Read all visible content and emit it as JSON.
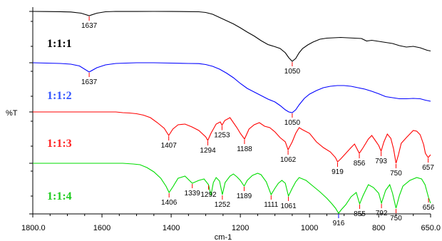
{
  "chart_data": {
    "type": "line",
    "xlabel": "cm-1",
    "ylabel": "%T",
    "xlim": [
      1800.0,
      650.0
    ],
    "x_reversed": true,
    "x_ticks": [
      {
        "value": 1800,
        "label": "1800.0"
      },
      {
        "value": 1600,
        "label": "1600"
      },
      {
        "value": 1400,
        "label": "1400"
      },
      {
        "value": 1200,
        "label": "1200"
      },
      {
        "value": 1000,
        "label": "1000"
      },
      {
        "value": 800,
        "label": "800"
      },
      {
        "value": 650,
        "label": "650.0"
      }
    ],
    "series": [
      {
        "name": "1:1:1",
        "color": "#000000",
        "label_color": "#000000",
        "points": [
          [
            1800,
            0.0
          ],
          [
            1760,
            0.2
          ],
          [
            1720,
            0.4
          ],
          [
            1690,
            0.8
          ],
          [
            1660,
            2.5
          ],
          [
            1637,
            6.0
          ],
          [
            1615,
            2.5
          ],
          [
            1590,
            0.5
          ],
          [
            1560,
            0.0
          ],
          [
            1500,
            0.1
          ],
          [
            1450,
            0.0
          ],
          [
            1400,
            0.1
          ],
          [
            1350,
            0.3
          ],
          [
            1320,
            0.5
          ],
          [
            1300,
            1.5
          ],
          [
            1280,
            4.0
          ],
          [
            1260,
            8.5
          ],
          [
            1240,
            13.0
          ],
          [
            1220,
            17.5
          ],
          [
            1200,
            23.0
          ],
          [
            1180,
            29.0
          ],
          [
            1160,
            34.5
          ],
          [
            1140,
            41.0
          ],
          [
            1120,
            46.5
          ],
          [
            1100,
            49.5
          ],
          [
            1085,
            52.0
          ],
          [
            1070,
            58.0
          ],
          [
            1060,
            65.0
          ],
          [
            1050,
            70.0
          ],
          [
            1040,
            66.0
          ],
          [
            1030,
            58.0
          ],
          [
            1020,
            52.0
          ],
          [
            1005,
            47.0
          ],
          [
            990,
            43.0
          ],
          [
            970,
            39.0
          ],
          [
            950,
            37.5
          ],
          [
            930,
            37.0
          ],
          [
            910,
            36.5
          ],
          [
            890,
            37.0
          ],
          [
            870,
            37.5
          ],
          [
            850,
            38.0
          ],
          [
            835,
            41.5
          ],
          [
            820,
            40.5
          ],
          [
            800,
            42.0
          ],
          [
            780,
            43.5
          ],
          [
            760,
            45.0
          ],
          [
            740,
            48.0
          ],
          [
            720,
            50.0
          ],
          [
            700,
            49.0
          ],
          [
            680,
            51.0
          ],
          [
            660,
            54.5
          ],
          [
            650,
            55.5
          ]
        ]
      },
      {
        "name": "1:1:2",
        "color": "#0000ff",
        "label_color": "#3355ff",
        "points": [
          [
            1800,
            0.0
          ],
          [
            1760,
            0.5
          ],
          [
            1720,
            1.0
          ],
          [
            1690,
            2.0
          ],
          [
            1665,
            4.5
          ],
          [
            1637,
            13.0
          ],
          [
            1615,
            7.0
          ],
          [
            1590,
            3.0
          ],
          [
            1560,
            1.0
          ],
          [
            1500,
            0.0
          ],
          [
            1450,
            0.0
          ],
          [
            1400,
            0.5
          ],
          [
            1350,
            1.0
          ],
          [
            1320,
            1.2
          ],
          [
            1300,
            2.5
          ],
          [
            1280,
            5.0
          ],
          [
            1260,
            9.0
          ],
          [
            1240,
            14.5
          ],
          [
            1220,
            21.0
          ],
          [
            1200,
            29.0
          ],
          [
            1180,
            36.0
          ],
          [
            1160,
            41.0
          ],
          [
            1140,
            46.0
          ],
          [
            1120,
            51.0
          ],
          [
            1100,
            55.0
          ],
          [
            1085,
            60.0
          ],
          [
            1070,
            66.0
          ],
          [
            1060,
            69.0
          ],
          [
            1050,
            70.0
          ],
          [
            1040,
            66.0
          ],
          [
            1030,
            59.0
          ],
          [
            1015,
            50.0
          ],
          [
            1000,
            44.0
          ],
          [
            980,
            39.0
          ],
          [
            960,
            35.0
          ],
          [
            940,
            33.0
          ],
          [
            920,
            32.0
          ],
          [
            900,
            32.0
          ],
          [
            880,
            33.0
          ],
          [
            860,
            35.0
          ],
          [
            840,
            37.0
          ],
          [
            820,
            40.0
          ],
          [
            800,
            43.5
          ],
          [
            780,
            47.5
          ],
          [
            760,
            49.0
          ],
          [
            740,
            50.5
          ],
          [
            720,
            50.5
          ],
          [
            700,
            50.0
          ],
          [
            680,
            50.5
          ],
          [
            665,
            52.5
          ],
          [
            650,
            54.0
          ]
        ]
      },
      {
        "name": "1:1:3",
        "color": "#ff0000",
        "label_color": "#ff2222",
        "points": [
          [
            1800,
            0.0
          ],
          [
            1700,
            0.0
          ],
          [
            1600,
            0.0
          ],
          [
            1560,
            0.0
          ],
          [
            1540,
            1.0
          ],
          [
            1520,
            1.5
          ],
          [
            1500,
            2.5
          ],
          [
            1480,
            4.5
          ],
          [
            1460,
            8.0
          ],
          [
            1440,
            15.0
          ],
          [
            1420,
            23.0
          ],
          [
            1407,
            33.0
          ],
          [
            1395,
            24.0
          ],
          [
            1380,
            18.0
          ],
          [
            1360,
            17.0
          ],
          [
            1340,
            21.0
          ],
          [
            1320,
            26.0
          ],
          [
            1300,
            35.0
          ],
          [
            1294,
            40.0
          ],
          [
            1285,
            30.0
          ],
          [
            1270,
            17.0
          ],
          [
            1258,
            14.0
          ],
          [
            1253,
            18.5
          ],
          [
            1245,
            12.0
          ],
          [
            1230,
            8.0
          ],
          [
            1210,
            22.0
          ],
          [
            1200,
            30.0
          ],
          [
            1188,
            38.0
          ],
          [
            1175,
            24.0
          ],
          [
            1160,
            18.0
          ],
          [
            1145,
            15.0
          ],
          [
            1130,
            20.0
          ],
          [
            1115,
            22.0
          ],
          [
            1100,
            28.0
          ],
          [
            1085,
            36.0
          ],
          [
            1070,
            42.0
          ],
          [
            1062,
            53.0
          ],
          [
            1050,
            42.0
          ],
          [
            1040,
            30.0
          ],
          [
            1030,
            22.0
          ],
          [
            1020,
            25.0
          ],
          [
            1000,
            30.0
          ],
          [
            980,
            42.0
          ],
          [
            960,
            50.0
          ],
          [
            940,
            56.0
          ],
          [
            925,
            64.0
          ],
          [
            919,
            70.0
          ],
          [
            910,
            66.0
          ],
          [
            895,
            58.0
          ],
          [
            880,
            50.0
          ],
          [
            870,
            45.0
          ],
          [
            856,
            58.0
          ],
          [
            845,
            50.0
          ],
          [
            830,
            38.0
          ],
          [
            820,
            33.0
          ],
          [
            810,
            40.0
          ],
          [
            800,
            47.0
          ],
          [
            793,
            55.0
          ],
          [
            785,
            42.0
          ],
          [
            775,
            31.0
          ],
          [
            765,
            37.0
          ],
          [
            757,
            52.0
          ],
          [
            750,
            72.0
          ],
          [
            743,
            60.0
          ],
          [
            735,
            44.0
          ],
          [
            720,
            36.0
          ],
          [
            700,
            26.0
          ],
          [
            690,
            27.0
          ],
          [
            680,
            32.0
          ],
          [
            670,
            46.0
          ],
          [
            665,
            58.0
          ],
          [
            657,
            64.0
          ],
          [
            650,
            60.0
          ]
        ]
      },
      {
        "name": "1:1:4",
        "color": "#00dd00",
        "label_color": "#22cc22",
        "points": [
          [
            1800,
            0.0
          ],
          [
            1700,
            0.0
          ],
          [
            1600,
            0.0
          ],
          [
            1540,
            0.0
          ],
          [
            1510,
            1.0
          ],
          [
            1490,
            2.0
          ],
          [
            1470,
            6.0
          ],
          [
            1450,
            12.0
          ],
          [
            1430,
            21.0
          ],
          [
            1415,
            32.0
          ],
          [
            1406,
            41.0
          ],
          [
            1395,
            33.0
          ],
          [
            1380,
            21.0
          ],
          [
            1360,
            18.0
          ],
          [
            1339,
            28.0
          ],
          [
            1320,
            24.0
          ],
          [
            1305,
            22.0
          ],
          [
            1292,
            30.0
          ],
          [
            1285,
            45.0
          ],
          [
            1278,
            27.0
          ],
          [
            1270,
            20.0
          ],
          [
            1260,
            25.0
          ],
          [
            1252,
            44.0
          ],
          [
            1244,
            27.0
          ],
          [
            1230,
            18.0
          ],
          [
            1220,
            15.0
          ],
          [
            1210,
            19.0
          ],
          [
            1200,
            24.0
          ],
          [
            1189,
            32.0
          ],
          [
            1180,
            24.0
          ],
          [
            1165,
            17.0
          ],
          [
            1150,
            14.0
          ],
          [
            1140,
            16.0
          ],
          [
            1125,
            26.0
          ],
          [
            1111,
            44.0
          ],
          [
            1100,
            35.0
          ],
          [
            1090,
            28.0
          ],
          [
            1080,
            24.0
          ],
          [
            1070,
            28.0
          ],
          [
            1061,
            46.0
          ],
          [
            1050,
            35.0
          ],
          [
            1040,
            26.0
          ],
          [
            1030,
            20.0
          ],
          [
            1010,
            24.0
          ],
          [
            990,
            32.0
          ],
          [
            970,
            40.0
          ],
          [
            950,
            49.0
          ],
          [
            935,
            57.0
          ],
          [
            925,
            63.0
          ],
          [
            916,
            70.0
          ],
          [
            908,
            65.0
          ],
          [
            895,
            58.0
          ],
          [
            880,
            47.0
          ],
          [
            865,
            41.0
          ],
          [
            855,
            57.0
          ],
          [
            845,
            45.0
          ],
          [
            830,
            30.0
          ],
          [
            815,
            34.0
          ],
          [
            800,
            42.0
          ],
          [
            792,
            56.0
          ],
          [
            780,
            38.0
          ],
          [
            768,
            30.0
          ],
          [
            760,
            42.0
          ],
          [
            750,
            63.0
          ],
          [
            740,
            45.0
          ],
          [
            730,
            32.0
          ],
          [
            710,
            24.0
          ],
          [
            690,
            20.0
          ],
          [
            676,
            22.0
          ],
          [
            666,
            30.0
          ],
          [
            656,
            48.0
          ],
          [
            650,
            56.0
          ]
        ]
      }
    ],
    "annotations": [
      {
        "series": 0,
        "x": 1637,
        "label": "1637"
      },
      {
        "series": 0,
        "x": 1050,
        "label": "1050"
      },
      {
        "series": 1,
        "x": 1637,
        "label": "1637"
      },
      {
        "series": 1,
        "x": 1050,
        "label": "1050"
      },
      {
        "series": 2,
        "x": 1407,
        "label": "1407"
      },
      {
        "series": 2,
        "x": 1294,
        "label": "1294"
      },
      {
        "series": 2,
        "x": 1253,
        "label": "1253"
      },
      {
        "series": 2,
        "x": 1188,
        "label": "1188"
      },
      {
        "series": 2,
        "x": 1062,
        "label": "1062"
      },
      {
        "series": 2,
        "x": 919,
        "label": "919"
      },
      {
        "series": 2,
        "x": 856,
        "label": "856"
      },
      {
        "series": 2,
        "x": 793,
        "label": "793"
      },
      {
        "series": 2,
        "x": 750,
        "label": "750"
      },
      {
        "series": 2,
        "x": 657,
        "label": "657"
      },
      {
        "series": 3,
        "x": 1406,
        "label": "1406"
      },
      {
        "series": 3,
        "x": 1339,
        "label": "1339"
      },
      {
        "series": 3,
        "x": 1292,
        "label": "1292"
      },
      {
        "series": 3,
        "x": 1252,
        "label": "1252"
      },
      {
        "series": 3,
        "x": 1189,
        "label": "1189"
      },
      {
        "series": 3,
        "x": 1111,
        "label": "1111"
      },
      {
        "series": 3,
        "x": 1061,
        "label": "1061"
      },
      {
        "series": 3,
        "x": 916,
        "label": "916"
      },
      {
        "series": 3,
        "x": 855,
        "label": "855"
      },
      {
        "series": 3,
        "x": 792,
        "label": "792"
      },
      {
        "series": 3,
        "x": 750,
        "label": "750"
      },
      {
        "series": 3,
        "x": 656,
        "label": "656"
      }
    ],
    "grid": false,
    "legend": "none"
  }
}
